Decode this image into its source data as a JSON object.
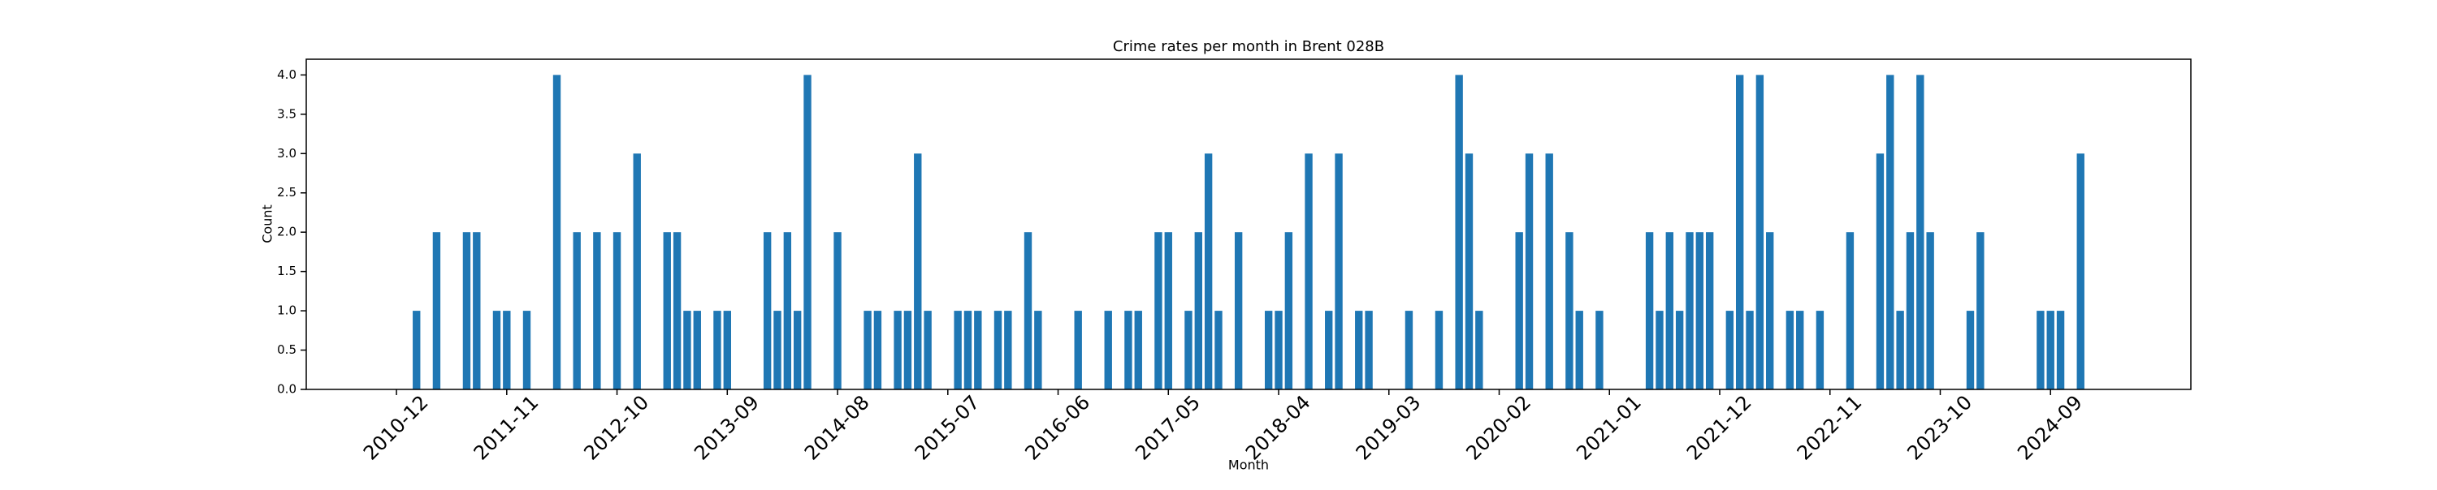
{
  "chart_data": {
    "type": "bar",
    "title": "Crime rates per month in Brent 028B",
    "x_label": "Month",
    "y_label": "Count",
    "color": "#1f77b4",
    "x": [
      "2011-02",
      "2011-04",
      "2011-07",
      "2011-08",
      "2011-10",
      "2011-11",
      "2012-01",
      "2012-04",
      "2012-06",
      "2012-08",
      "2012-10",
      "2012-12",
      "2013-03",
      "2013-04",
      "2013-05",
      "2013-06",
      "2013-08",
      "2013-09",
      "2014-01",
      "2014-02",
      "2014-03",
      "2014-04",
      "2014-05",
      "2014-08",
      "2014-11",
      "2014-12",
      "2015-02",
      "2015-03",
      "2015-04",
      "2015-05",
      "2015-08",
      "2015-09",
      "2015-10",
      "2015-12",
      "2016-01",
      "2016-03",
      "2016-04",
      "2016-08",
      "2016-11",
      "2017-01",
      "2017-02",
      "2017-04",
      "2017-05",
      "2017-07",
      "2017-08",
      "2017-09",
      "2017-10",
      "2017-12",
      "2018-03",
      "2018-04",
      "2018-05",
      "2018-07",
      "2018-09",
      "2018-10",
      "2018-12",
      "2019-01",
      "2019-05",
      "2019-08",
      "2019-10",
      "2019-11",
      "2019-12",
      "2020-04",
      "2020-05",
      "2020-07",
      "2020-09",
      "2020-10",
      "2020-12",
      "2021-05",
      "2021-06",
      "2021-07",
      "2021-08",
      "2021-09",
      "2021-10",
      "2021-11",
      "2022-01",
      "2022-02",
      "2022-03",
      "2022-04",
      "2022-05",
      "2022-07",
      "2022-08",
      "2022-10",
      "2023-01",
      "2023-04",
      "2023-05",
      "2023-06",
      "2023-07",
      "2023-08",
      "2023-09",
      "2024-01",
      "2024-02",
      "2024-08",
      "2024-09",
      "2024-10",
      "2024-12"
    ],
    "values": [
      1,
      2,
      2,
      2,
      1,
      1,
      1,
      4,
      2,
      2,
      2,
      3,
      2,
      2,
      1,
      1,
      1,
      1,
      2,
      1,
      2,
      1,
      4,
      2,
      1,
      1,
      1,
      1,
      3,
      1,
      1,
      1,
      1,
      1,
      1,
      2,
      1,
      1,
      1,
      1,
      1,
      2,
      2,
      1,
      2,
      3,
      1,
      2,
      1,
      1,
      2,
      3,
      1,
      3,
      1,
      1,
      1,
      1,
      4,
      3,
      1,
      2,
      3,
      3,
      2,
      1,
      1,
      2,
      1,
      2,
      1,
      2,
      2,
      2,
      1,
      4,
      1,
      4,
      2,
      1,
      1,
      1,
      2,
      3,
      4,
      1,
      2,
      4,
      2,
      1,
      2,
      1,
      1,
      1,
      3
    ],
    "xlim": [
      "2010-03",
      "2025-11"
    ],
    "xticks": [
      "2010-12",
      "2011-11",
      "2012-10",
      "2013-09",
      "2014-08",
      "2015-07",
      "2016-06",
      "2017-05",
      "2018-04",
      "2019-03",
      "2020-02",
      "2021-01",
      "2021-12",
      "2022-11",
      "2023-10",
      "2024-09"
    ],
    "ylim": [
      0,
      4.2
    ],
    "yticks": [
      {
        "value": 0,
        "label": "0.0"
      },
      {
        "value": 0.5,
        "label": "0.5"
      },
      {
        "value": 1,
        "label": "1.0"
      },
      {
        "value": 1.5,
        "label": "1.5"
      },
      {
        "value": 2,
        "label": "2.0"
      },
      {
        "value": 2.5,
        "label": "2.5"
      },
      {
        "value": 3,
        "label": "3.0"
      },
      {
        "value": 3.5,
        "label": "3.5"
      },
      {
        "value": 4,
        "label": "4.0"
      }
    ]
  }
}
